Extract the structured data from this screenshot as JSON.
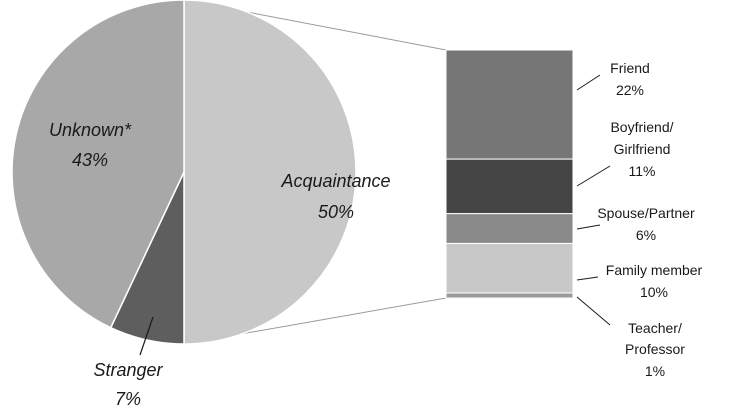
{
  "chart_data": {
    "type": "bar-of-pie",
    "pie": {
      "slices": [
        {
          "label": "Acquaintance",
          "value": 50,
          "value_label": "50%",
          "color": "#c8c8c8"
        },
        {
          "label": "Stranger",
          "value": 7,
          "value_label": "7%",
          "color": "#5e5e5e"
        },
        {
          "label": "Unknown*",
          "value": 43,
          "value_label": "43%",
          "color": "#a8a8a8"
        }
      ]
    },
    "bar": {
      "segments": [
        {
          "label": "Friend",
          "value": 22,
          "value_label": "22%",
          "color": "#767676"
        },
        {
          "label": "Boyfriend/ Girlfriend",
          "value": 11,
          "value_label": "11%",
          "color": "#454545"
        },
        {
          "label": "Spouse/Partner",
          "value": 6,
          "value_label": "6%",
          "color": "#8a8a8a"
        },
        {
          "label": "Family member",
          "value": 10,
          "value_label": "10%",
          "color": "#c8c8c8"
        },
        {
          "label": "Teacher/ Professor",
          "value": 1,
          "value_label": "1%",
          "color": "#9a9a9a"
        }
      ]
    }
  }
}
